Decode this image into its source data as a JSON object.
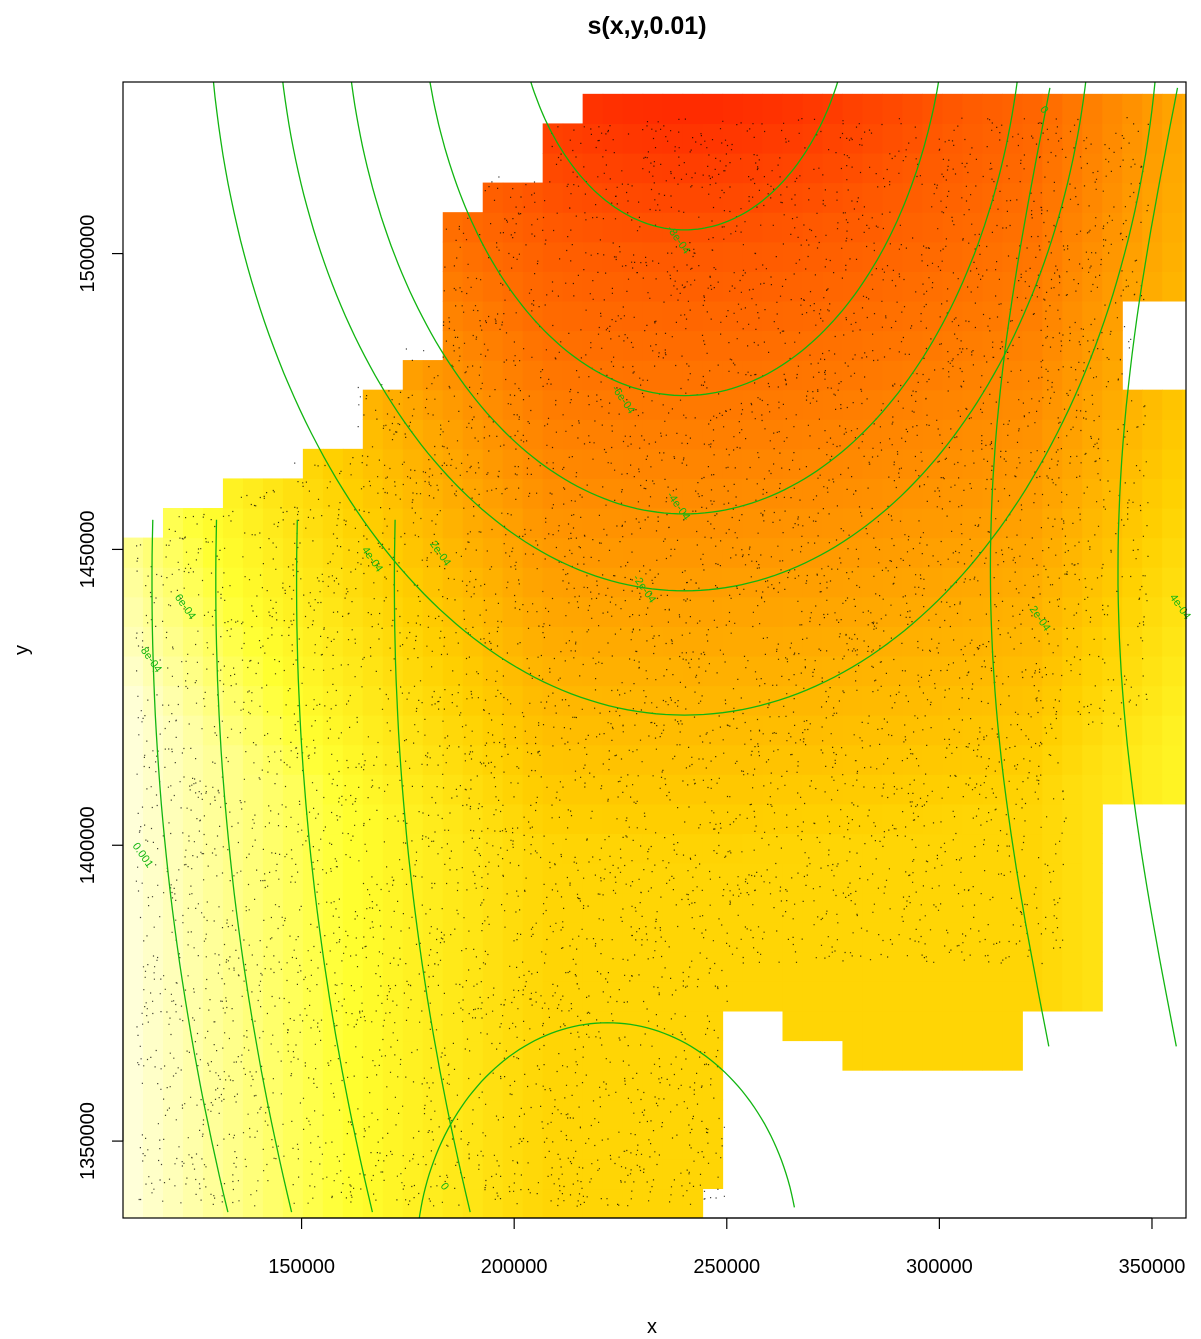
{
  "chart_data": {
    "type": "heatmap",
    "title": "s(x,y,0.01)",
    "xlabel": "x",
    "ylabel": "y",
    "xlim": [
      108000,
      358000
    ],
    "ylim": [
      1337000,
      1529000
    ],
    "x_ticks": [
      150000,
      200000,
      250000,
      300000,
      350000
    ],
    "y_ticks": [
      1350000,
      1400000,
      1450000,
      1500000
    ],
    "x_tick_labels": [
      "150000",
      "200000",
      "250000",
      "300000",
      "350000"
    ],
    "y_tick_labels": [
      "1350000",
      "1400000",
      "1450000",
      "1500000"
    ],
    "color_scale": [
      "#ff0000",
      "#ff5a00",
      "#ff9500",
      "#ffd000",
      "#ffff30",
      "#ffffe0"
    ],
    "contour_color": "#11b511",
    "contour_labels": [
      {
        "text": "-8e-04",
        "x": 238000,
        "y": 1502000
      },
      {
        "text": "-6e-04",
        "x": 225000,
        "y": 1475000
      },
      {
        "text": "-4e-04",
        "x": 238000,
        "y": 1457000
      },
      {
        "text": "-2e-04",
        "x": 230000,
        "y": 1443000
      },
      {
        "text": "2e-04",
        "x": 182000,
        "y": 1449000
      },
      {
        "text": "4e-04",
        "x": 166000,
        "y": 1448000
      },
      {
        "text": "6e-04",
        "x": 122000,
        "y": 1440000
      },
      {
        "text": "8e-04",
        "x": 114000,
        "y": 1431000
      },
      {
        "text": "0.001",
        "x": 112000,
        "y": 1398000
      },
      {
        "text": "0",
        "x": 324000,
        "y": 1524000
      },
      {
        "text": "0",
        "x": 183000,
        "y": 1342000
      },
      {
        "text": "2e-04",
        "x": 323000,
        "y": 1438000
      },
      {
        "text": "4e-04",
        "x": 356000,
        "y": 1440000
      }
    ]
  }
}
